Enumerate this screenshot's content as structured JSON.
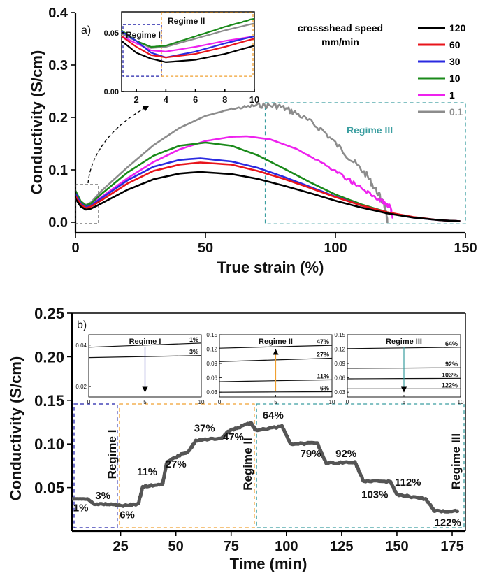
{
  "colors": {
    "s120": "#000000",
    "s60": "#e8141b",
    "s30": "#2a2ae0",
    "s10": "#1a8a1a",
    "s1": "#ee22ee",
    "s01": "#8c8c8c",
    "regime1": "#2222aa",
    "regime2": "#f0a030",
    "regime3": "#3a9ea0",
    "step_trace": "#555555"
  },
  "chart_data": [
    {
      "type": "line",
      "panel_label": "a)",
      "xlabel": "True strain (%)",
      "ylabel": "Conductivity (S/cm)",
      "xlim": [
        0,
        150
      ],
      "ylim": [
        -0.02,
        0.4
      ],
      "x_ticks": [
        "0",
        "50",
        "100",
        "150"
      ],
      "y_ticks": [
        "0.0",
        "0.1",
        "0.2",
        "0.3",
        "0.4"
      ],
      "legend_title": [
        "crossshead speed",
        "mm/min"
      ],
      "legend_position": "top-right",
      "regime_label": "Regime III",
      "series": [
        {
          "name": "120",
          "color_key": "s120",
          "x": [
            0,
            2,
            4,
            6,
            10,
            20,
            30,
            40,
            48,
            60,
            70,
            80,
            90,
            100,
            110,
            120,
            130,
            140,
            148
          ],
          "y": [
            0.045,
            0.03,
            0.024,
            0.026,
            0.036,
            0.062,
            0.082,
            0.093,
            0.096,
            0.092,
            0.083,
            0.07,
            0.056,
            0.041,
            0.028,
            0.017,
            0.009,
            0.004,
            0.002
          ]
        },
        {
          "name": "60",
          "color_key": "s60",
          "x": [
            0,
            2,
            4,
            6,
            10,
            20,
            30,
            40,
            48,
            60,
            70,
            80,
            90,
            100,
            110,
            120,
            130,
            140,
            148
          ],
          "y": [
            0.05,
            0.034,
            0.027,
            0.03,
            0.042,
            0.074,
            0.098,
            0.11,
            0.114,
            0.11,
            0.098,
            0.083,
            0.066,
            0.048,
            0.032,
            0.019,
            0.01,
            0.004,
            0.002
          ]
        },
        {
          "name": "30",
          "color_key": "s30",
          "x": [
            0,
            2,
            4,
            6,
            10,
            20,
            30,
            40,
            48,
            60,
            70,
            80,
            90,
            100,
            110,
            120,
            130,
            140,
            148
          ],
          "y": [
            0.055,
            0.036,
            0.029,
            0.032,
            0.046,
            0.08,
            0.106,
            0.119,
            0.122,
            0.116,
            0.104,
            0.087,
            0.068,
            0.049,
            0.032,
            0.018,
            0.009,
            0.004,
            0.002
          ]
        },
        {
          "name": "10",
          "color_key": "s10",
          "x": [
            0,
            2,
            4,
            6,
            10,
            20,
            30,
            40,
            50,
            60,
            70,
            80,
            90,
            100,
            110,
            120,
            130
          ],
          "y": [
            0.06,
            0.04,
            0.032,
            0.036,
            0.054,
            0.095,
            0.127,
            0.146,
            0.152,
            0.146,
            0.128,
            0.103,
            0.077,
            0.053,
            0.034,
            0.019,
            0.009
          ]
        },
        {
          "name": "1",
          "color_key": "s1",
          "x": [
            0,
            2,
            4,
            6,
            10,
            20,
            30,
            40,
            50,
            60,
            66,
            75,
            85,
            95,
            105,
            112,
            118,
            121,
            122
          ],
          "y": [
            0.055,
            0.037,
            0.03,
            0.033,
            0.048,
            0.084,
            0.115,
            0.139,
            0.155,
            0.163,
            0.164,
            0.158,
            0.14,
            0.113,
            0.082,
            0.058,
            0.04,
            0.03,
            0.01
          ]
        },
        {
          "name": "0.1",
          "color_key": "s01",
          "x": [
            0,
            2,
            4,
            6,
            10,
            20,
            30,
            40,
            50,
            60,
            70,
            78,
            85,
            95,
            105,
            112,
            117,
            119,
            120
          ],
          "y": [
            0.06,
            0.04,
            0.033,
            0.038,
            0.06,
            0.105,
            0.147,
            0.18,
            0.203,
            0.216,
            0.223,
            0.222,
            0.208,
            0.176,
            0.125,
            0.09,
            0.05,
            0.03,
            0.0
          ]
        }
      ]
    },
    {
      "type": "line",
      "panel_label": "a) inset",
      "xlim": [
        1,
        10
      ],
      "ylim": [
        0.0,
        0.06
      ],
      "x_ticks": [
        "2",
        "4",
        "6",
        "8",
        "10"
      ],
      "y_ticks": [
        "0.00",
        "0.05"
      ],
      "regimes": [
        "Regime I",
        "Regime II"
      ]
    },
    {
      "type": "line",
      "panel_label": "b)",
      "xlabel": "Time (min)",
      "ylabel": "Conductivity (S/cm)",
      "xlim": [
        3,
        181
      ],
      "ylim": [
        0.0,
        0.25
      ],
      "x_ticks": [
        "25",
        "50",
        "75",
        "100",
        "125",
        "150",
        "175"
      ],
      "y_ticks": [
        "0.05",
        "0.10",
        "0.15",
        "0.20",
        "0.25"
      ],
      "regimes": [
        "Regime I",
        "Regime II",
        "Regime III"
      ],
      "series": [
        {
          "name": "step trace",
          "x": [
            3,
            10,
            13,
            22,
            25,
            33,
            35,
            44,
            46,
            56,
            59,
            71,
            74,
            84,
            86,
            98,
            102,
            114,
            118,
            131,
            135,
            147,
            150,
            163,
            167,
            178
          ],
          "y": [
            0.037,
            0.037,
            0.031,
            0.031,
            0.029,
            0.031,
            0.051,
            0.054,
            0.08,
            0.092,
            0.104,
            0.107,
            0.115,
            0.124,
            0.116,
            0.12,
            0.1,
            0.101,
            0.078,
            0.079,
            0.057,
            0.057,
            0.042,
            0.037,
            0.023,
            0.023
          ]
        }
      ],
      "annotations": [
        {
          "text": "1%",
          "x": 7,
          "y": 0.023
        },
        {
          "text": "3%",
          "x": 17,
          "y": 0.037
        },
        {
          "text": "6%",
          "x": 28,
          "y": 0.015
        },
        {
          "text": "11%",
          "x": 37,
          "y": 0.064
        },
        {
          "text": "27%",
          "x": 50,
          "y": 0.073
        },
        {
          "text": "37%",
          "x": 63,
          "y": 0.114
        },
        {
          "text": "47%",
          "x": 76,
          "y": 0.104
        },
        {
          "text": "64%",
          "x": 94,
          "y": 0.129
        },
        {
          "text": "79%",
          "x": 111,
          "y": 0.085
        },
        {
          "text": "92%",
          "x": 127,
          "y": 0.085
        },
        {
          "text": "103%",
          "x": 140,
          "y": 0.038
        },
        {
          "text": "112%",
          "x": 155,
          "y": 0.052
        },
        {
          "text": "122%",
          "x": 173,
          "y": 0.006
        }
      ]
    },
    {
      "type": "line",
      "panel_label": "b) inset Regime I",
      "title": "Regime I",
      "xlim": [
        0,
        10
      ],
      "ylim": [
        0.015,
        0.045
      ],
      "x_ticks": [
        "0",
        "5",
        "10"
      ],
      "y_ticks": [
        "0.02",
        "0.04"
      ],
      "series": [
        {
          "name": "1%",
          "x": [
            0,
            10
          ],
          "y": [
            0.039,
            0.041
          ]
        },
        {
          "name": "3%",
          "x": [
            0,
            10
          ],
          "y": [
            0.034,
            0.035
          ]
        }
      ]
    },
    {
      "type": "line",
      "panel_label": "b) inset Regime II",
      "title": "Regime II",
      "xlim": [
        0,
        10
      ],
      "ylim": [
        0.02,
        0.15
      ],
      "x_ticks": [
        "0",
        "5",
        "10"
      ],
      "y_ticks": [
        "0.03",
        "0.06",
        "0.09",
        "0.12",
        "0.15"
      ],
      "series": [
        {
          "name": "47%",
          "x": [
            0,
            10
          ],
          "y": [
            0.122,
            0.128
          ]
        },
        {
          "name": "27%",
          "x": [
            0,
            10
          ],
          "y": [
            0.094,
            0.101
          ]
        },
        {
          "name": "11%",
          "x": [
            0,
            10
          ],
          "y": [
            0.052,
            0.056
          ]
        },
        {
          "name": "6%",
          "x": [
            0,
            10
          ],
          "y": [
            0.03,
            0.031
          ]
        }
      ]
    },
    {
      "type": "line",
      "panel_label": "b) inset Regime III",
      "title": "Regime III",
      "xlim": [
        0,
        10
      ],
      "ylim": [
        0.02,
        0.15
      ],
      "x_ticks": [
        "0",
        "5",
        "10"
      ],
      "y_ticks": [
        "0.03",
        "0.06",
        "0.09",
        "0.12",
        "0.15"
      ],
      "series": [
        {
          "name": "64%",
          "x": [
            0,
            10
          ],
          "y": [
            0.121,
            0.124
          ]
        },
        {
          "name": "92%",
          "x": [
            0,
            10
          ],
          "y": [
            0.08,
            0.081
          ]
        },
        {
          "name": "103%",
          "x": [
            0,
            10
          ],
          "y": [
            0.058,
            0.059
          ]
        },
        {
          "name": "122%",
          "x": [
            0,
            10
          ],
          "y": [
            0.037,
            0.037
          ]
        }
      ]
    }
  ]
}
